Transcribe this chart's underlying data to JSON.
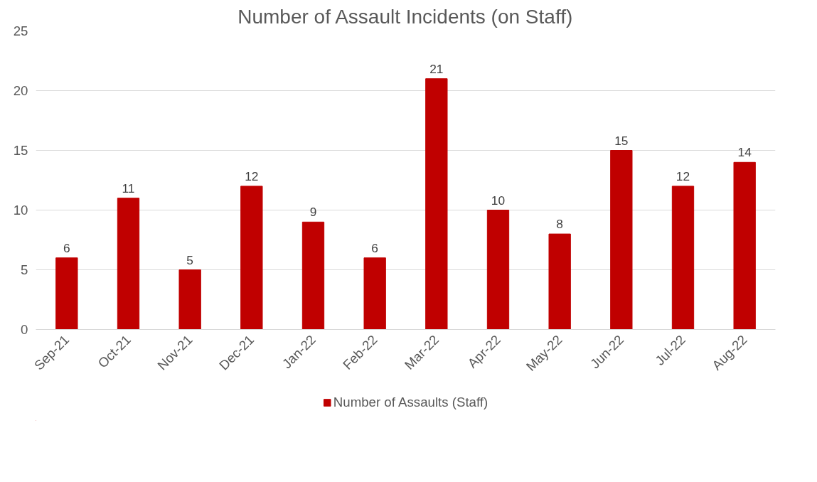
{
  "chart_data": {
    "type": "bar",
    "title": "Number of Assault Incidents (on Staff)",
    "categories": [
      "Sep-21",
      "Oct-21",
      "Nov-21",
      "Dec-21",
      "Jan-22",
      "Feb-22",
      "Mar-22",
      "Apr-22",
      "May-22",
      "Jun-22",
      "Jul-22",
      "Aug-22"
    ],
    "series": [
      {
        "name": "Number of Assaults (Staff)",
        "color": "#c00000",
        "values": [
          6,
          11,
          5,
          12,
          9,
          6,
          21,
          10,
          8,
          15,
          12,
          14
        ]
      }
    ],
    "ylim": [
      0,
      25
    ],
    "yticks": [
      0,
      5,
      10,
      15,
      20,
      25
    ],
    "grid": "y",
    "legend": "bottom",
    "data_labels": true
  }
}
